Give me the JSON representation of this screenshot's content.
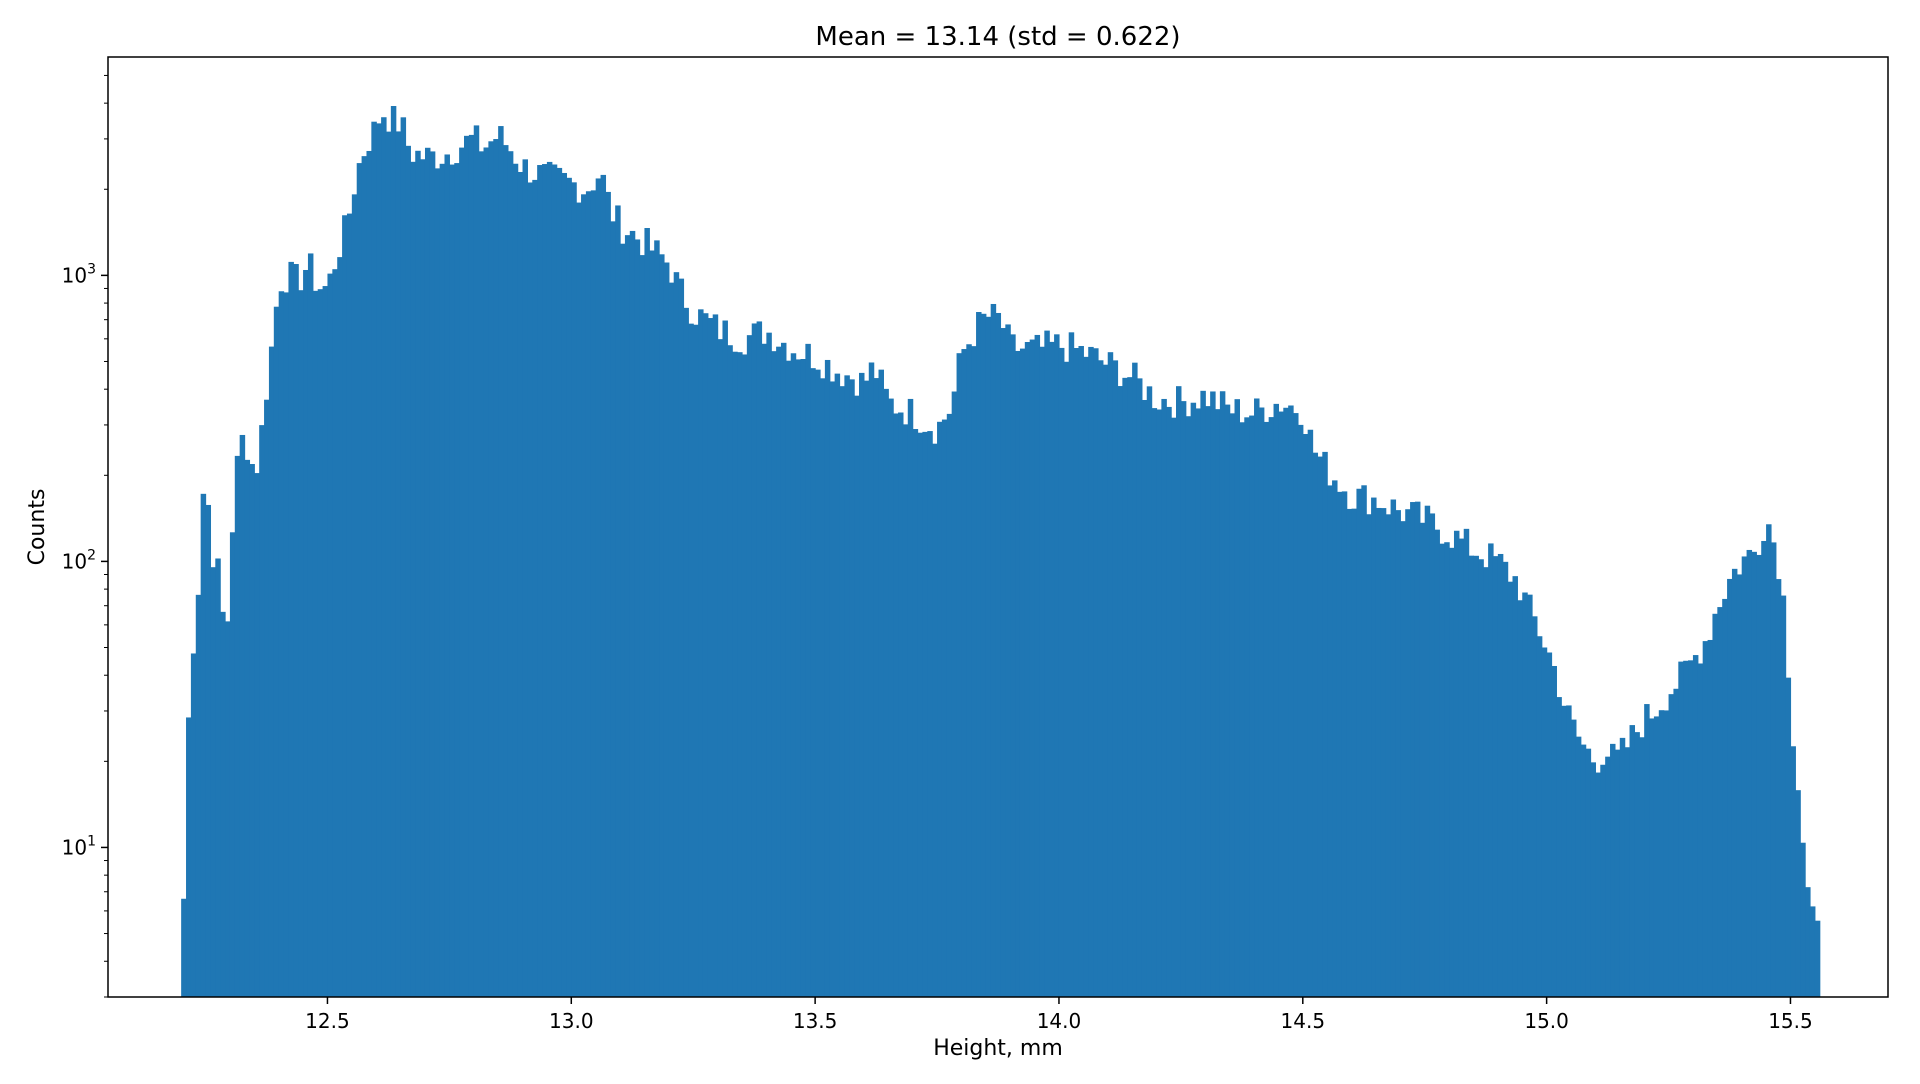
{
  "chart_data": {
    "type": "bar",
    "subtype": "histogram",
    "title": "Mean = 13.14 (std = 0.622)",
    "xlabel": "Height, mm",
    "ylabel": "Counts",
    "yscale": "log",
    "xlim": [
      12.05,
      15.7
    ],
    "ylim": [
      3,
      5800
    ],
    "xticks": [
      12.5,
      13.0,
      13.5,
      14.0,
      14.5,
      15.0,
      15.5
    ],
    "xtick_labels": [
      "12.5",
      "13.0",
      "13.5",
      "14.0",
      "14.5",
      "15.0",
      "15.5"
    ],
    "yticks": [
      {
        "base": "10",
        "exponent": "1",
        "value": 10
      },
      {
        "base": "10",
        "exponent": "2",
        "value": 100
      },
      {
        "base": "10",
        "exponent": "3",
        "value": 1000
      }
    ],
    "grid": false,
    "legend": "none",
    "bar_color": "#1f77b4",
    "x_start": 12.2,
    "x_end": 15.56,
    "anchors": [
      [
        12.2,
        4
      ],
      [
        12.21,
        11
      ],
      [
        12.215,
        28
      ],
      [
        12.225,
        53
      ],
      [
        12.235,
        82
      ],
      [
        12.24,
        120
      ],
      [
        12.245,
        175
      ],
      [
        12.25,
        215
      ],
      [
        12.26,
        115
      ],
      [
        12.27,
        100
      ],
      [
        12.28,
        85
      ],
      [
        12.285,
        65
      ],
      [
        12.29,
        40
      ],
      [
        12.3,
        100
      ],
      [
        12.31,
        180
      ],
      [
        12.32,
        260
      ],
      [
        12.33,
        270
      ],
      [
        12.34,
        240
      ],
      [
        12.35,
        200
      ],
      [
        12.36,
        240
      ],
      [
        12.37,
        340
      ],
      [
        12.38,
        480
      ],
      [
        12.39,
        640
      ],
      [
        12.4,
        950
      ],
      [
        12.42,
        1000
      ],
      [
        12.44,
        950
      ],
      [
        12.46,
        1100
      ],
      [
        12.48,
        920
      ],
      [
        12.5,
        900
      ],
      [
        12.52,
        1200
      ],
      [
        12.54,
        1500
      ],
      [
        12.56,
        2300
      ],
      [
        12.58,
        2900
      ],
      [
        12.6,
        3300
      ],
      [
        12.61,
        3800
      ],
      [
        12.63,
        3500
      ],
      [
        12.65,
        3400
      ],
      [
        12.67,
        2700
      ],
      [
        12.7,
        2600
      ],
      [
        12.72,
        2600
      ],
      [
        12.75,
        2700
      ],
      [
        12.78,
        2900
      ],
      [
        12.8,
        3000
      ],
      [
        12.82,
        2800
      ],
      [
        12.85,
        3100
      ],
      [
        12.88,
        2700
      ],
      [
        12.9,
        2400
      ],
      [
        12.95,
        2200
      ],
      [
        13.0,
        2100
      ],
      [
        13.03,
        2000
      ],
      [
        13.06,
        2300
      ],
      [
        13.08,
        1700
      ],
      [
        13.1,
        1500
      ],
      [
        13.15,
        1300
      ],
      [
        13.2,
        1100
      ],
      [
        13.22,
        900
      ],
      [
        13.25,
        750
      ],
      [
        13.3,
        650
      ],
      [
        13.35,
        600
      ],
      [
        13.4,
        640
      ],
      [
        13.45,
        560
      ],
      [
        13.5,
        520
      ],
      [
        13.55,
        460
      ],
      [
        13.58,
        440
      ],
      [
        13.6,
        420
      ],
      [
        13.62,
        480
      ],
      [
        13.65,
        360
      ],
      [
        13.7,
        330
      ],
      [
        13.75,
        290
      ],
      [
        13.78,
        350
      ],
      [
        13.8,
        530
      ],
      [
        13.83,
        650
      ],
      [
        13.85,
        720
      ],
      [
        13.88,
        700
      ],
      [
        13.9,
        560
      ],
      [
        13.95,
        550
      ],
      [
        14.0,
        570
      ],
      [
        14.05,
        540
      ],
      [
        14.1,
        490
      ],
      [
        14.15,
        440
      ],
      [
        14.2,
        370
      ],
      [
        14.25,
        360
      ],
      [
        14.3,
        380
      ],
      [
        14.35,
        340
      ],
      [
        14.4,
        330
      ],
      [
        14.45,
        360
      ],
      [
        14.5,
        340
      ],
      [
        14.52,
        250
      ],
      [
        14.55,
        210
      ],
      [
        14.6,
        170
      ],
      [
        14.65,
        165
      ],
      [
        14.7,
        150
      ],
      [
        14.75,
        140
      ],
      [
        14.8,
        125
      ],
      [
        14.85,
        110
      ],
      [
        14.9,
        100
      ],
      [
        14.94,
        85
      ],
      [
        14.96,
        70
      ],
      [
        14.98,
        60
      ],
      [
        15.0,
        50
      ],
      [
        15.02,
        40
      ],
      [
        15.04,
        30
      ],
      [
        15.06,
        25
      ],
      [
        15.08,
        22
      ],
      [
        15.1,
        20
      ],
      [
        15.12,
        22
      ],
      [
        15.14,
        20
      ],
      [
        15.16,
        22
      ],
      [
        15.18,
        25
      ],
      [
        15.2,
        28
      ],
      [
        15.22,
        30
      ],
      [
        15.25,
        35
      ],
      [
        15.28,
        40
      ],
      [
        15.3,
        45
      ],
      [
        15.33,
        55
      ],
      [
        15.35,
        70
      ],
      [
        15.38,
        90
      ],
      [
        15.4,
        100
      ],
      [
        15.43,
        110
      ],
      [
        15.45,
        145
      ],
      [
        15.47,
        110
      ],
      [
        15.48,
        90
      ],
      [
        15.49,
        60
      ],
      [
        15.5,
        32
      ],
      [
        15.51,
        20
      ],
      [
        15.52,
        14
      ],
      [
        15.53,
        8
      ],
      [
        15.54,
        6
      ],
      [
        15.55,
        5
      ],
      [
        15.56,
        5
      ]
    ]
  }
}
